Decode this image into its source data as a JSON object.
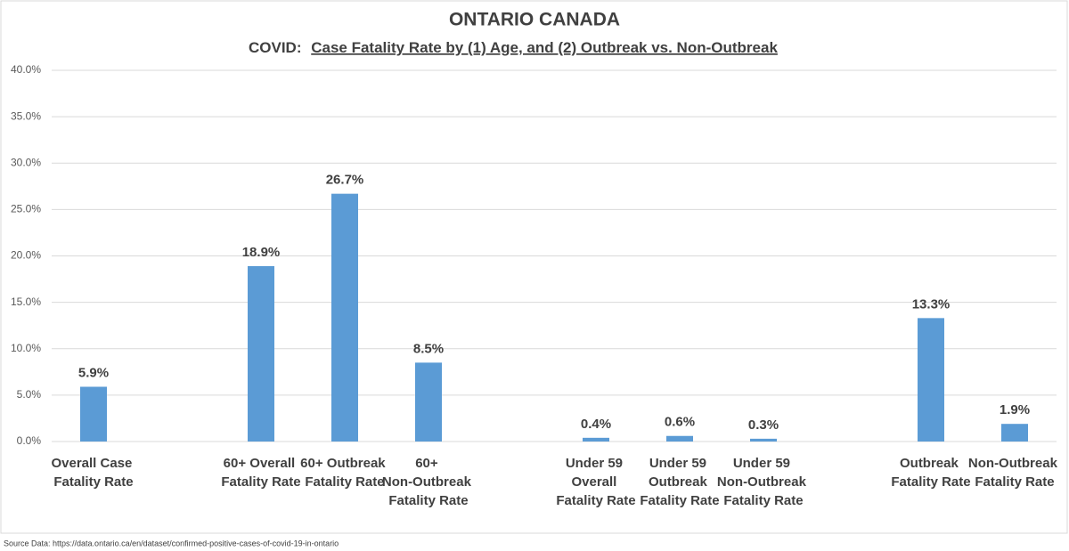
{
  "chart_data": {
    "type": "bar",
    "title": "ONTARIO CANADA",
    "subtitle_prefix": "COVID:",
    "subtitle": "Case Fatality Rate by (1) Age, and (2) Outbreak vs. Non-Outbreak",
    "source": "Source Data: https://data.ontario.ca/en/dataset/confirmed-positive-cases-of-covid-19-in-ontario",
    "categories": [
      "Overall Case Fatality Rate",
      null,
      "60+ Overall Fatality Rate",
      "60+ Outbreak Fatality Rate",
      "60+ Non-Outbreak Fatality Rate",
      null,
      "Under 59 Overall Fatality Rate",
      "Under 59 Outbreak Fatality Rate",
      "Under 59 Non-Outbreak Fatality Rate",
      null,
      "Outbreak Fatality Rate",
      "Non-Outbreak Fatality Rate"
    ],
    "values": [
      5.9,
      null,
      18.9,
      26.7,
      8.5,
      null,
      0.4,
      0.6,
      0.3,
      null,
      13.3,
      1.9
    ],
    "value_labels": [
      "5.9%",
      null,
      "18.9%",
      "26.7%",
      "8.5%",
      null,
      "0.4%",
      "0.6%",
      "0.3%",
      null,
      "13.3%",
      "1.9%"
    ],
    "color": "#5b9bd5",
    "ylim": [
      0,
      40
    ],
    "yticks": [
      {
        "value": 0,
        "label": "0.0%"
      },
      {
        "value": 5,
        "label": "5.0%"
      },
      {
        "value": 10,
        "label": "10.0%"
      },
      {
        "value": 15,
        "label": "15.0%"
      },
      {
        "value": 20,
        "label": "20.0%"
      },
      {
        "value": 25,
        "label": "25.0%"
      },
      {
        "value": 30,
        "label": "30.0%"
      },
      {
        "value": 35,
        "label": "35.0%"
      },
      {
        "value": 40,
        "label": "40.0%"
      }
    ],
    "grid": true
  }
}
